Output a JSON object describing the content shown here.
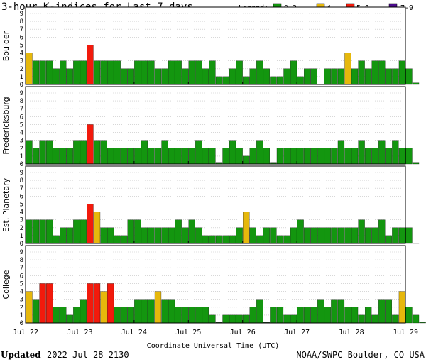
{
  "title": "3-hour K-indices for Last 7 days",
  "legend": {
    "label": "Legend:",
    "items": [
      {
        "label": "0-3",
        "color": "#13960f"
      },
      {
        "label": "4",
        "color": "#e6b80c"
      },
      {
        "label": "5,6",
        "color": "#f21a0c"
      },
      {
        "label": "7-9",
        "color": "#4b0a8c"
      }
    ]
  },
  "footer": {
    "updated_label": "Updated",
    "updated_value": "2022 Jul 28 2130",
    "source": "NOAA/SWPC Boulder, CO USA"
  },
  "chart_data": {
    "type": "bar",
    "xlabel": "Coordinate Universal Time (UTC)",
    "x_ticks": [
      "Jul 22",
      "Jul 23",
      "Jul 24",
      "Jul 25",
      "Jul 26",
      "Jul 27",
      "Jul 28",
      "Jul 29"
    ],
    "ylim": [
      0,
      9
    ],
    "y_ticks": [
      0,
      1,
      2,
      3,
      4,
      5,
      6,
      7,
      8,
      9
    ],
    "color_scale": {
      "0-3": "#13960f",
      "4": "#e6b80c",
      "5,6": "#f21a0c",
      "7-9": "#4b0a8c"
    },
    "panels": [
      {
        "name": "Boulder",
        "values": [
          4,
          3,
          3,
          3,
          2,
          3,
          2,
          3,
          3,
          5,
          3,
          3,
          3,
          3,
          2,
          2,
          3,
          3,
          3,
          2,
          2,
          3,
          3,
          2,
          3,
          3,
          2,
          3,
          1,
          1,
          2,
          3,
          1,
          2,
          3,
          2,
          1,
          1,
          2,
          3,
          1,
          2,
          2,
          0,
          2,
          2,
          2,
          4,
          2,
          3,
          2,
          3,
          3,
          2,
          2,
          3,
          2,
          0.2
        ]
      },
      {
        "name": "Fredericksburg",
        "values": [
          3,
          2,
          3,
          3,
          2,
          2,
          2,
          3,
          3,
          5,
          3,
          3,
          2,
          2,
          2,
          2,
          2,
          3,
          2,
          2,
          3,
          2,
          2,
          2,
          2,
          3,
          2,
          2,
          0.2,
          2,
          3,
          2,
          1,
          2,
          3,
          2,
          0.2,
          2,
          2,
          2,
          2,
          2,
          2,
          2,
          2,
          2,
          3,
          2,
          2,
          3,
          2,
          2,
          3,
          2,
          3,
          2,
          2,
          0.2
        ]
      },
      {
        "name": "Est. Planetary",
        "values": [
          3,
          3,
          3,
          3,
          1,
          2,
          2,
          3,
          3,
          5,
          4,
          2,
          2,
          1,
          1,
          3,
          3,
          2,
          2,
          2,
          2,
          2,
          3,
          2,
          3,
          2,
          1,
          1,
          1,
          1,
          1,
          2,
          4,
          2,
          1,
          2,
          2,
          1,
          1,
          2,
          3,
          2,
          2,
          2,
          2,
          2,
          2,
          2,
          2,
          3,
          2,
          2,
          3,
          1,
          2,
          2,
          2,
          0
        ]
      },
      {
        "name": "College",
        "values": [
          4,
          3,
          5,
          5,
          2,
          2,
          1,
          2,
          3,
          5,
          5,
          4,
          5,
          2,
          2,
          2,
          3,
          3,
          3,
          4,
          3,
          3,
          2,
          2,
          2,
          2,
          2,
          1,
          0,
          1,
          1,
          1,
          1,
          2,
          3,
          0,
          2,
          2,
          1,
          1,
          2,
          2,
          2,
          3,
          2,
          3,
          3,
          2,
          2,
          1,
          2,
          1,
          3,
          3,
          1,
          4,
          2,
          1,
          0
        ]
      }
    ]
  }
}
